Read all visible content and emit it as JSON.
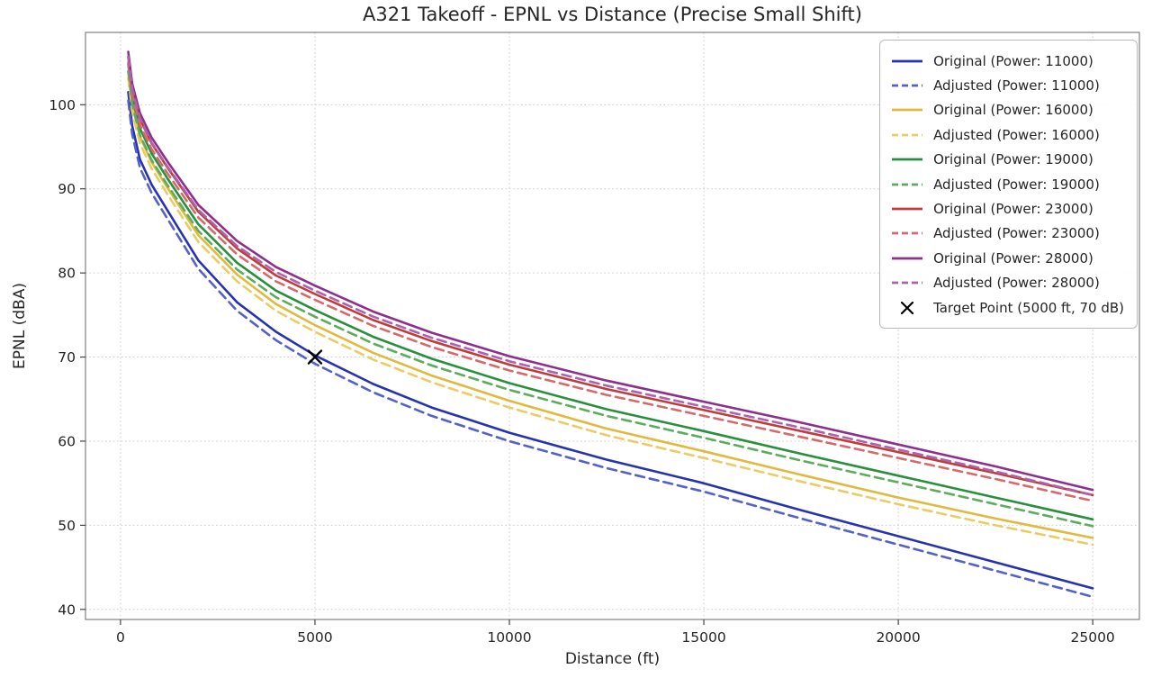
{
  "chart_data": {
    "type": "line",
    "title": "A321 Takeoff - EPNL vs Distance (Precise Small Shift)",
    "xlabel": "Distance (ft)",
    "ylabel": "EPNL (dBA)",
    "xlim": [
      -900,
      26200
    ],
    "ylim": [
      38.8,
      108.6
    ],
    "x_ticks": [
      0,
      5000,
      10000,
      15000,
      20000,
      25000
    ],
    "y_ticks": [
      40,
      50,
      60,
      70,
      80,
      90,
      100
    ],
    "grid": true,
    "grid_style": "dotted",
    "grid_color": "#cccccc",
    "frame_color": "#808080",
    "legend_position": "upper right",
    "x": [
      200,
      300,
      500,
      800,
      1200,
      2000,
      3000,
      4000,
      5000,
      6500,
      8000,
      10000,
      12500,
      15000,
      17500,
      20000,
      22500,
      25000
    ],
    "series": [
      {
        "name": "Original (Power: 11000)",
        "color": "#2733ae",
        "style": "solid",
        "values": [
          101.5,
          97.5,
          93.5,
          90.5,
          87.5,
          81.5,
          76.5,
          73.0,
          70.2,
          66.8,
          64.0,
          61.0,
          57.8,
          55.0,
          51.8,
          48.7,
          45.6,
          42.5
        ]
      },
      {
        "name": "Adjusted (Power: 11000)",
        "color": "#5560c8",
        "style": "dashed",
        "values": [
          100.5,
          96.5,
          92.5,
          89.5,
          86.5,
          80.5,
          75.5,
          72.0,
          69.2,
          65.8,
          63.0,
          60.0,
          56.8,
          54.0,
          50.8,
          47.7,
          44.6,
          41.5
        ]
      },
      {
        "name": "Original (Power: 16000)",
        "color": "#e0b93f",
        "style": "solid",
        "values": [
          104.0,
          100.0,
          96.2,
          93.2,
          90.2,
          84.5,
          79.8,
          76.3,
          73.8,
          70.5,
          67.8,
          64.8,
          61.5,
          58.8,
          56.0,
          53.3,
          50.8,
          48.5
        ]
      },
      {
        "name": "Adjusted (Power: 16000)",
        "color": "#e9cc66",
        "style": "dashed",
        "values": [
          103.2,
          99.2,
          95.4,
          92.4,
          89.4,
          83.7,
          79.0,
          75.5,
          73.0,
          69.7,
          67.0,
          64.0,
          60.7,
          58.0,
          55.2,
          52.5,
          50.0,
          47.7
        ]
      },
      {
        "name": "Original (Power: 19000)",
        "color": "#2a8f3c",
        "style": "solid",
        "values": [
          104.8,
          100.9,
          97.2,
          94.2,
          91.3,
          85.8,
          81.2,
          77.9,
          75.6,
          72.4,
          69.8,
          66.9,
          63.8,
          61.2,
          58.5,
          55.9,
          53.3,
          50.7
        ]
      },
      {
        "name": "Adjusted (Power: 19000)",
        "color": "#5dab5d",
        "style": "dashed",
        "values": [
          104.0,
          100.1,
          96.4,
          93.4,
          90.5,
          85.0,
          80.4,
          77.1,
          74.8,
          71.6,
          69.0,
          66.1,
          63.0,
          60.4,
          57.7,
          55.1,
          52.5,
          49.9
        ]
      },
      {
        "name": "Original (Power: 23000)",
        "color": "#c03c3c",
        "style": "solid",
        "values": [
          105.7,
          101.9,
          98.3,
          95.4,
          92.6,
          87.3,
          82.9,
          79.7,
          77.5,
          74.4,
          71.9,
          69.1,
          66.2,
          63.7,
          61.2,
          58.7,
          56.2,
          53.6
        ]
      },
      {
        "name": "Adjusted (Power: 23000)",
        "color": "#d46a6a",
        "style": "dashed",
        "values": [
          105.0,
          101.2,
          97.6,
          94.7,
          91.9,
          86.6,
          82.2,
          79.0,
          76.8,
          73.7,
          71.2,
          68.4,
          65.5,
          63.0,
          60.5,
          58.0,
          55.5,
          52.9
        ]
      },
      {
        "name": "Original (Power: 28000)",
        "color": "#8e2f8e",
        "style": "solid",
        "values": [
          106.3,
          102.5,
          99.0,
          96.1,
          93.3,
          88.1,
          83.8,
          80.7,
          78.5,
          75.4,
          72.9,
          70.1,
          67.2,
          64.7,
          62.2,
          59.6,
          57.0,
          54.2
        ]
      },
      {
        "name": "Adjusted (Power: 28000)",
        "color": "#ad62ab",
        "style": "dashed",
        "values": [
          105.7,
          101.9,
          98.4,
          95.5,
          92.7,
          87.5,
          83.2,
          80.1,
          77.9,
          74.8,
          72.3,
          69.5,
          66.6,
          64.1,
          61.6,
          59.0,
          56.4,
          53.6
        ]
      }
    ],
    "target_point": {
      "label": "Target Point (5000 ft, 70 dB)",
      "x": 5000,
      "y": 70,
      "marker": "x",
      "color": "#000000"
    }
  }
}
